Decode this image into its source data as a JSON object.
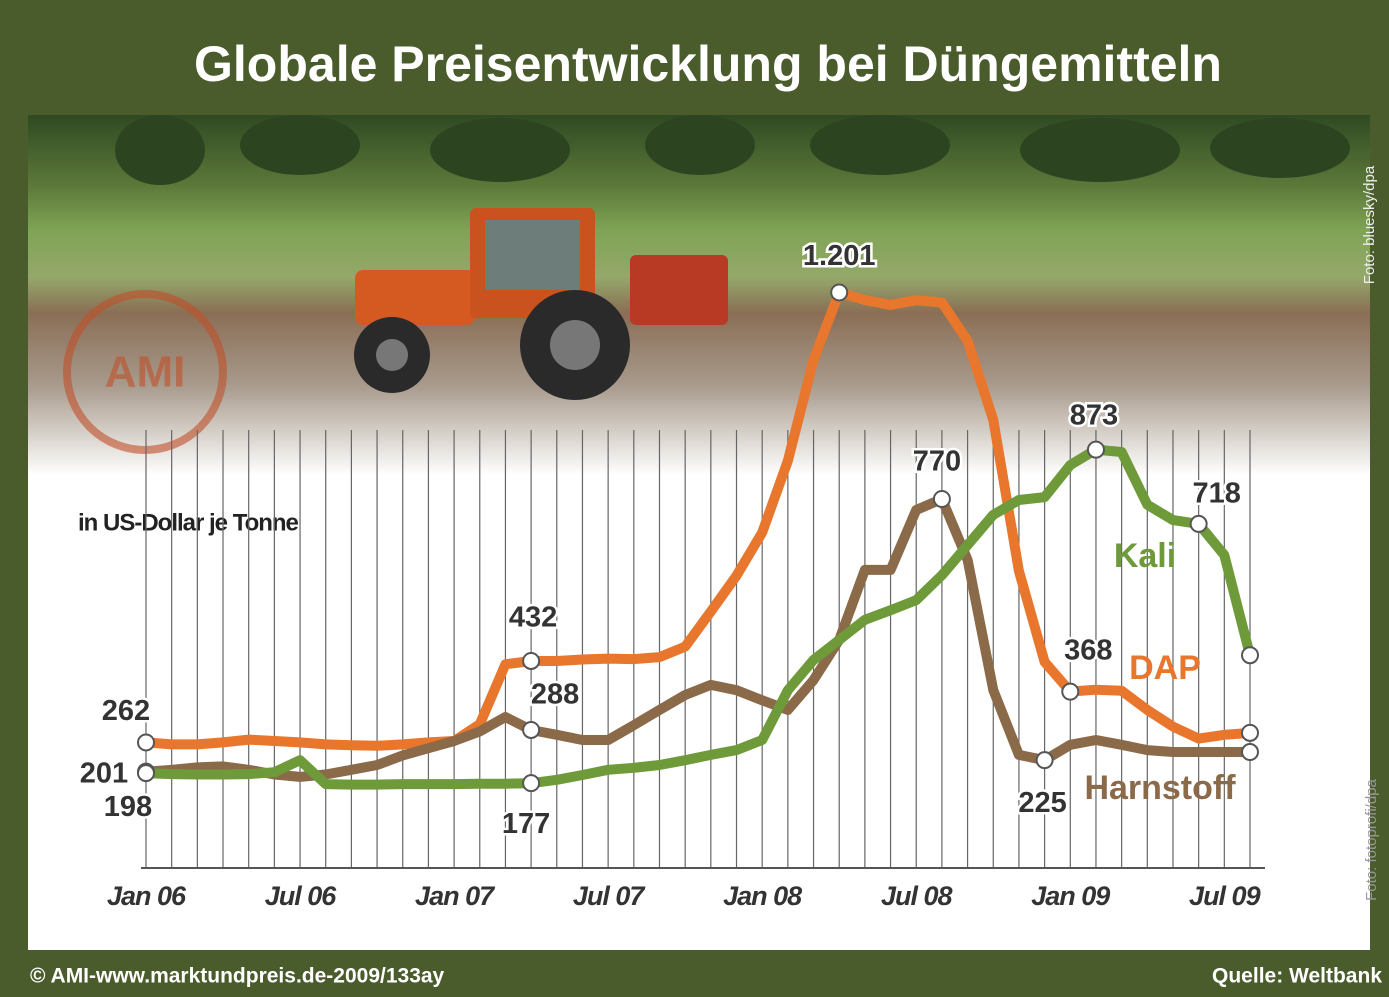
{
  "title": "Globale Preisentwicklung bei Düngemitteln",
  "footer": {
    "left": "© AMI-www.marktundpreis.de-2009/133ay",
    "right": "Quelle: Weltbank"
  },
  "photo_credits": [
    "Foto: bluesky/dpa",
    "Foto: fotoprofi/dpa"
  ],
  "logo": "AMI",
  "chart_data": {
    "type": "line",
    "subtitle": "in US-Dollar je Tonne",
    "categories": [
      "Jan 06",
      null,
      null,
      null,
      null,
      null,
      "Jul 06",
      null,
      null,
      null,
      null,
      null,
      "Jan 07",
      null,
      null,
      null,
      null,
      null,
      "Jul 07",
      null,
      null,
      null,
      null,
      null,
      "Jan 08",
      null,
      null,
      null,
      null,
      null,
      "Jul 08",
      null,
      null,
      null,
      null,
      null,
      "Jan 09",
      null,
      null,
      null,
      null,
      null,
      "Jul 09",
      null
    ],
    "ylim": [
      0,
      1300
    ],
    "grid": true,
    "series": [
      {
        "name": "DAP",
        "color": "#e8762c",
        "values": [
          262,
          258,
          258,
          262,
          268,
          265,
          262,
          258,
          256,
          255,
          258,
          262,
          265,
          300,
          425,
          432,
          432,
          435,
          437,
          436,
          440,
          462,
          535,
          610,
          700,
          850,
          1060,
          1201,
          1185,
          1175,
          1185,
          1180,
          1100,
          935,
          620,
          430,
          368,
          372,
          370,
          330,
          295,
          270,
          278,
          282
        ],
        "value_labels": [
          "262",
          null,
          null,
          null,
          null,
          null,
          null,
          null,
          null,
          null,
          null,
          null,
          null,
          null,
          null,
          "432",
          null,
          null,
          null,
          null,
          null,
          null,
          null,
          null,
          null,
          null,
          null,
          "1.201",
          null,
          null,
          null,
          null,
          null,
          null,
          null,
          null,
          "368",
          null,
          null,
          null,
          null,
          null,
          null,
          null
        ]
      },
      {
        "name": "Harnstoff",
        "color": "#8b6a4a",
        "values": [
          201,
          205,
          210,
          212,
          205,
          195,
          190,
          195,
          205,
          215,
          235,
          250,
          265,
          285,
          315,
          288,
          278,
          267,
          267,
          298,
          330,
          361,
          382,
          371,
          350,
          330,
          392,
          476,
          622,
          622,
          747,
          770,
          643,
          371,
          236,
          225,
          257,
          267,
          257,
          246,
          242,
          242,
          242,
          242
        ],
        "value_labels": [
          "201",
          null,
          null,
          null,
          null,
          null,
          null,
          null,
          null,
          null,
          null,
          null,
          null,
          null,
          null,
          "288",
          null,
          null,
          null,
          null,
          null,
          null,
          null,
          null,
          null,
          null,
          null,
          null,
          null,
          null,
          null,
          "770",
          null,
          null,
          null,
          "225",
          null,
          null,
          null,
          null,
          null,
          null,
          null,
          null
        ]
      },
      {
        "name": "Kali",
        "color": "#6e9a3a",
        "values": [
          198,
          196,
          195,
          195,
          196,
          200,
          225,
          175,
          174,
          174,
          175,
          175,
          175,
          176,
          176,
          177,
          184,
          194,
          205,
          209,
          215,
          225,
          236,
          246,
          267,
          371,
          434,
          476,
          518,
          538,
          559,
          611,
          674,
          737,
          768,
          774,
          841,
          873,
          868,
          758,
          726,
          718,
          653,
          444
        ],
        "value_labels": [
          "198",
          null,
          null,
          null,
          null,
          null,
          null,
          null,
          null,
          null,
          null,
          null,
          null,
          null,
          null,
          "177",
          null,
          null,
          null,
          null,
          null,
          null,
          null,
          null,
          null,
          null,
          null,
          null,
          null,
          null,
          null,
          null,
          null,
          null,
          null,
          null,
          null,
          "873",
          null,
          null,
          null,
          "718",
          null,
          null
        ]
      }
    ]
  }
}
